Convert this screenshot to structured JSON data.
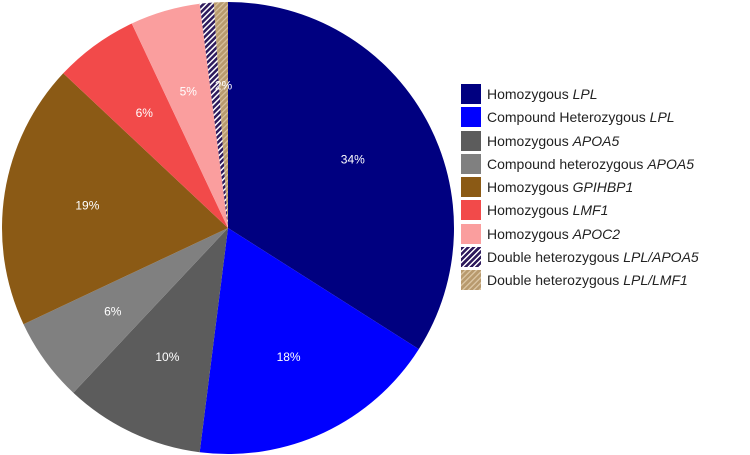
{
  "chart_data": {
    "type": "pie",
    "start_angle_deg": 90,
    "direction": "clockwise",
    "slices": [
      {
        "label": "34%",
        "value": 34,
        "color": "#000080",
        "legend_prefix": "Homozygous ",
        "legend_gene": "LPL",
        "pattern": "solid"
      },
      {
        "label": "18%",
        "value": 18,
        "color": "#0000FF",
        "legend_prefix": "Compound Heterozygous ",
        "legend_gene": "LPL",
        "pattern": "solid"
      },
      {
        "label": "10%",
        "value": 10,
        "color": "#5C5C5C",
        "legend_prefix": "Homozygous ",
        "legend_gene": "APOA5",
        "pattern": "solid"
      },
      {
        "label": "6%",
        "value": 6,
        "color": "#808080",
        "legend_prefix": "Compound heterozygous ",
        "legend_gene": "APOA5",
        "pattern": "solid"
      },
      {
        "label": "19%",
        "value": 19,
        "color": "#8B5A15",
        "legend_prefix": "Homozygous ",
        "legend_gene": "GPIHBP1",
        "pattern": "solid"
      },
      {
        "label": "6%",
        "value": 6,
        "color": "#F24A4A",
        "legend_prefix": "Homozygous ",
        "legend_gene": "LMF1",
        "pattern": "solid"
      },
      {
        "label": "5%",
        "value": 5,
        "color": "#FA9E9E",
        "legend_prefix": "Homozygous ",
        "legend_gene": "APOC2",
        "pattern": "solid"
      },
      {
        "label": "",
        "value": 1,
        "color": "#3B1F6B",
        "legend_prefix": "Double heterozygous ",
        "legend_gene": "LPL/APOA5",
        "pattern": "hatch"
      },
      {
        "label": "2%",
        "value": 1,
        "color": "#B89A6E",
        "legend_prefix": "Double heterozygous ",
        "legend_gene": "LPL/LMF1",
        "pattern": "hatch"
      }
    ],
    "legend_position": "right"
  }
}
